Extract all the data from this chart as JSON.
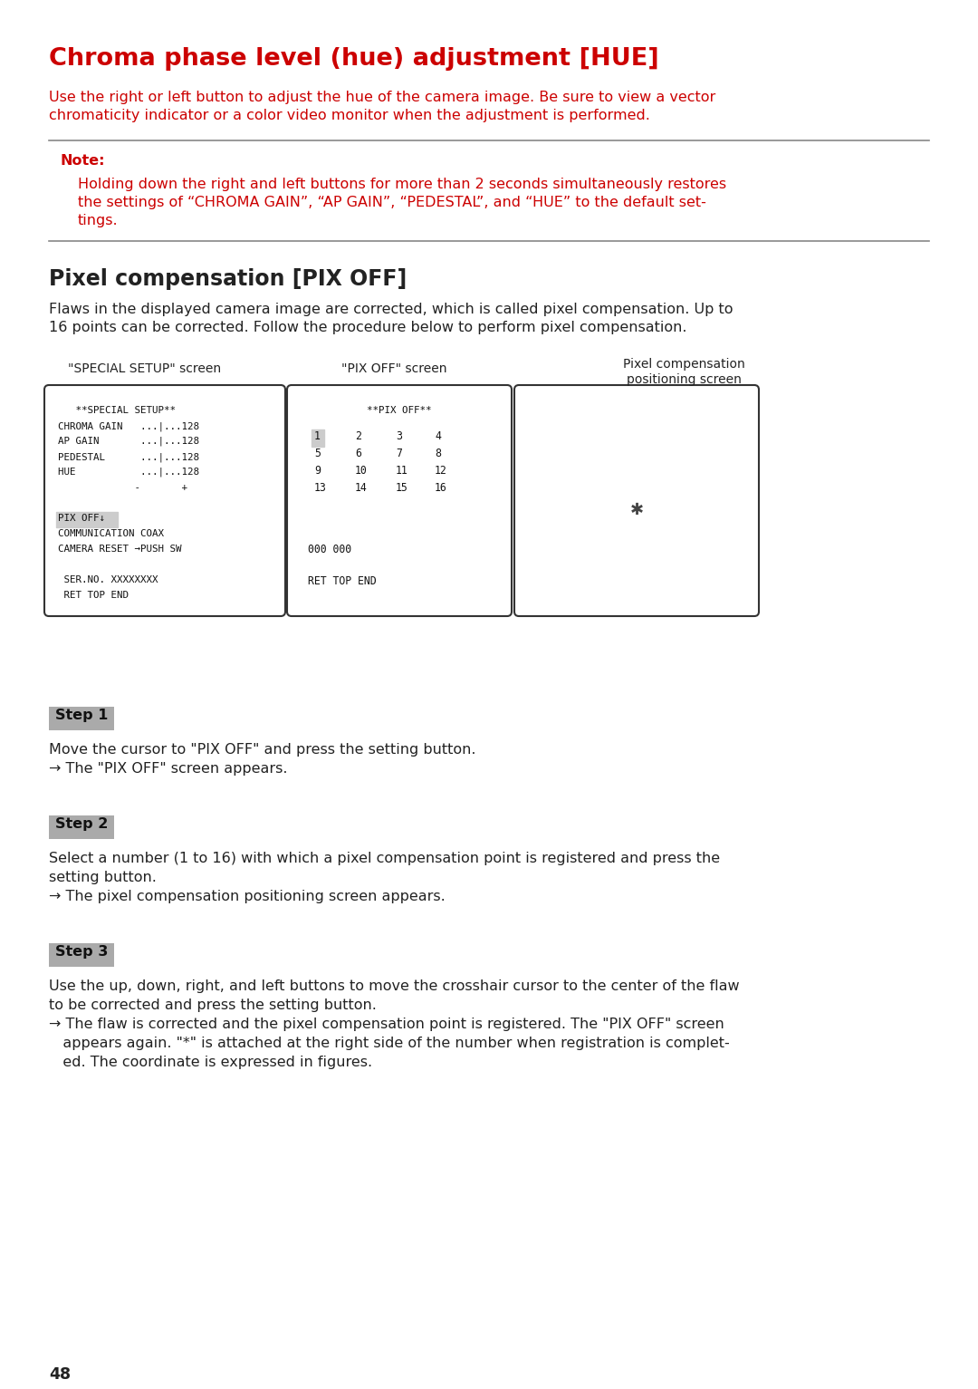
{
  "page_bg": "#ffffff",
  "page_number": "48",
  "section1_title": "Chroma phase level (hue) adjustment [HUE]",
  "section1_title_color": "#cc0000",
  "section1_body": "Use the right or left button to adjust the hue of the camera image. Be sure to view a vector\nchromaticity indicator or a color video monitor when the adjustment is performed.",
  "section1_body_color": "#cc0000",
  "note_label": "Note:",
  "note_label_color": "#cc0000",
  "note_body": "Holding down the right and left buttons for more than 2 seconds simultaneously restores\nthe settings of “CHROMA GAIN”, “AP GAIN”, “PEDESTAL”, and “HUE” to the default set-\ntings.",
  "note_body_color": "#cc0000",
  "section2_title": "Pixel compensation [PIX OFF]",
  "section2_body": "Flaws in the displayed camera image are corrected, which is called pixel compensation. Up to\n16 points can be corrected. Follow the procedure below to perform pixel compensation.",
  "screen1_label": "\"SPECIAL SETUP\" screen",
  "screen2_label": "\"PIX OFF\" screen",
  "screen3_label": "Pixel compensation\npositioning screen",
  "screen2_numbers": [
    "1",
    "2",
    "3",
    "4",
    "5",
    "6",
    "7",
    "8",
    "9",
    "10",
    "11",
    "12",
    "13",
    "14",
    "15",
    "16"
  ],
  "step1_label": "Step 1",
  "step1_line1": "Move the cursor to \"PIX OFF\" and press the setting button.",
  "step1_line2": "→ The \"PIX OFF\" screen appears.",
  "step2_label": "Step 2",
  "step2_line1": "Select a number (1 to 16) with which a pixel compensation point is registered and press the",
  "step2_line2": "setting button.",
  "step2_line3": "→ The pixel compensation positioning screen appears.",
  "step3_label": "Step 3",
  "step3_line1": "Use the up, down, right, and left buttons to move the crosshair cursor to the center of the flaw",
  "step3_line2": "to be corrected and press the setting button.",
  "step3_line3": "→ The flaw is corrected and the pixel compensation point is registered. The \"PIX OFF\" screen",
  "step3_line4": "   appears again. \"*\" is attached at the right side of the number when registration is complet-",
  "step3_line5": "   ed. The coordinate is expressed in figures.",
  "hr_color": "#888888",
  "text_color": "#222222"
}
